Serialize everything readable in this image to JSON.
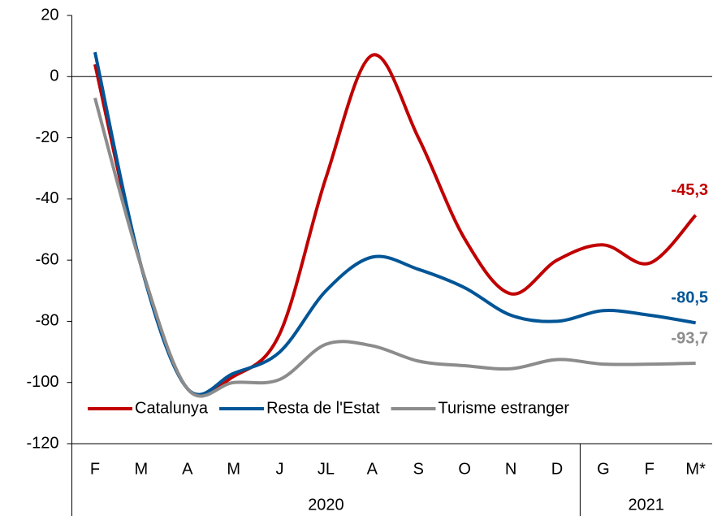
{
  "chart_data": {
    "type": "line",
    "categories": [
      "F",
      "M",
      "A",
      "M",
      "J",
      "JL",
      "A",
      "S",
      "O",
      "N",
      "D",
      "G",
      "F",
      "M*"
    ],
    "groups": [
      {
        "label": "2020",
        "count": 11
      },
      {
        "label": "2021",
        "count": 3
      }
    ],
    "series": [
      {
        "name": "Catalunya",
        "color": "#c00000",
        "values": [
          4,
          -62,
          -102,
          -98,
          -84,
          -33,
          7,
          -20,
          -53,
          -71,
          -60,
          -55,
          -61,
          -45.3
        ],
        "value_labels": [
          null,
          null,
          null,
          null,
          null,
          null,
          null,
          null,
          null,
          null,
          null,
          null,
          null,
          "-45,3"
        ]
      },
      {
        "name": "Resta de l'Estat",
        "color": "#005596",
        "values": [
          8,
          -62,
          -102,
          -97,
          -90,
          -70,
          -59,
          -63,
          -69,
          -78,
          -80,
          -76.5,
          -78,
          -80.5
        ],
        "value_labels": [
          null,
          null,
          null,
          null,
          null,
          null,
          null,
          null,
          null,
          null,
          null,
          null,
          null,
          "-80,5"
        ]
      },
      {
        "name": "Turisme estranger",
        "color": "#8c8c8c",
        "values": [
          -7,
          -62,
          -102,
          -100,
          -99,
          -87.5,
          -88,
          -93,
          -94.5,
          -95.5,
          -92.5,
          -94,
          -94,
          -93.7
        ],
        "value_labels": [
          null,
          null,
          null,
          null,
          null,
          null,
          null,
          null,
          null,
          null,
          null,
          null,
          null,
          "-93,7"
        ]
      }
    ],
    "ylim": [
      -120,
      20
    ],
    "yticks": [
      -120,
      -100,
      -80,
      -60,
      -40,
      -20,
      0,
      20
    ],
    "grid": false,
    "legend": "bottom"
  }
}
